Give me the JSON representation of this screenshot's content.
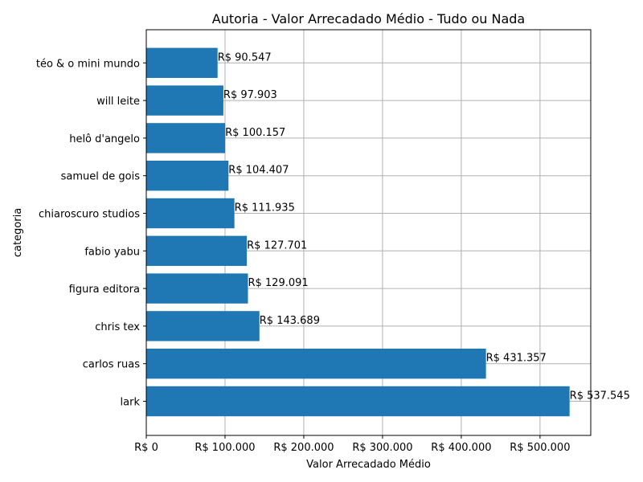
{
  "chart_data": {
    "type": "bar",
    "orientation": "horizontal",
    "title": "Autoria - Valor Arrecadado Médio - Tudo ou Nada",
    "xlabel": "Valor Arrecadado Médio",
    "ylabel": "categoria",
    "categories": [
      "lark",
      "carlos ruas",
      "chris tex",
      "figura editora",
      "fabio yabu",
      "chiaroscuro studios",
      "samuel de gois",
      "helô d'angelo",
      "will leite",
      "téo & o mini mundo"
    ],
    "values": [
      537545,
      431357,
      143689,
      129091,
      127701,
      111935,
      104407,
      100157,
      97903,
      90547
    ],
    "data_labels": [
      "R$ 537.545",
      "R$ 431.357",
      "R$ 143.689",
      "R$ 129.091",
      "R$ 127.701",
      "R$ 111.935",
      "R$ 104.407",
      "R$ 100.157",
      "R$ 97.903",
      "R$ 90.547"
    ],
    "xticks": [
      0,
      100000,
      200000,
      300000,
      400000,
      500000
    ],
    "xtick_labels": [
      "R$ 0",
      "R$ 100.000",
      "R$ 200.000",
      "R$ 300.000",
      "R$ 400.000",
      "R$ 500.000"
    ],
    "xlim": [
      0,
      564422
    ],
    "grid": true,
    "color": "#1f77b4"
  }
}
